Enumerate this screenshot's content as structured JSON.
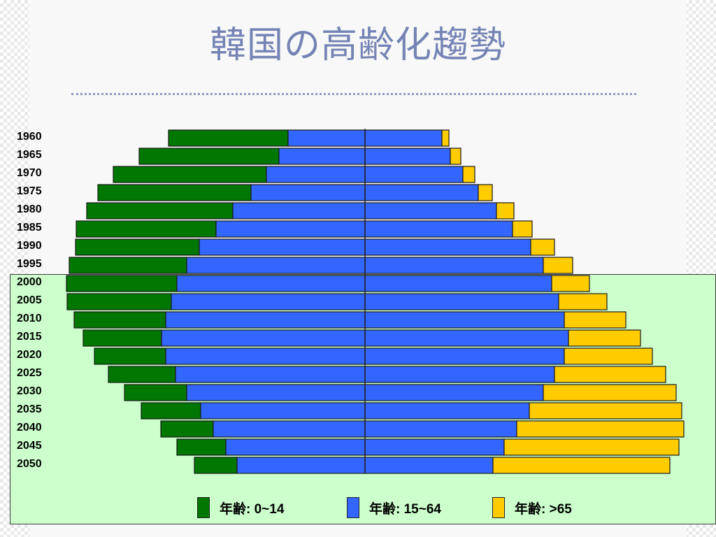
{
  "title": "韓国の高齢化趨勢",
  "colors": {
    "age_0_14": "#007700",
    "age_15_64": "#3366ff",
    "age_65_plus": "#ffcc00",
    "future_panel": "#ccffcc",
    "title": "#7584b4"
  },
  "legend": [
    {
      "label": "年齢: 0~14",
      "color": "#007700"
    },
    {
      "label": "年齢: 15~64",
      "color": "#3366ff"
    },
    {
      "label": "年齢: >65",
      "color": "#ffcc00"
    }
  ],
  "chart_data": {
    "type": "bar",
    "orientation": "horizontal",
    "categories": [
      "1960",
      "1965",
      "1970",
      "1975",
      "1980",
      "1985",
      "1990",
      "1995",
      "2000",
      "2005",
      "2010",
      "2015",
      "2020",
      "2025",
      "2030",
      "2035",
      "2040",
      "2045",
      "2050"
    ],
    "series": [
      {
        "name": "年齢: 0~14",
        "values": [
          17.1,
          20.0,
          21.9,
          21.9,
          20.9,
          20.0,
          17.7,
          16.8,
          15.8,
          14.9,
          13.1,
          11.2,
          10.2,
          9.6,
          8.9,
          8.5,
          7.5,
          7.0,
          6.1
        ]
      },
      {
        "name": "年齢: 15~64",
        "values": [
          11.0,
          12.3,
          14.1,
          16.3,
          18.9,
          21.3,
          23.7,
          25.5,
          26.9,
          27.7,
          28.5,
          29.1,
          28.5,
          27.1,
          25.5,
          23.5,
          21.7,
          19.9,
          18.3
        ]
      },
      {
        "name": "年齢: 15~64",
        "values": [
          11.0,
          12.2,
          14.0,
          16.2,
          18.8,
          21.1,
          23.7,
          25.5,
          26.7,
          27.7,
          28.5,
          29.1,
          28.5,
          27.1,
          25.5,
          23.5,
          21.7,
          19.9,
          18.3
        ]
      },
      {
        "name": "年齢: >65",
        "values": [
          1.0,
          1.5,
          1.7,
          2.0,
          2.5,
          2.8,
          3.4,
          4.2,
          5.4,
          6.9,
          8.8,
          10.3,
          12.6,
          15.9,
          19.0,
          21.8,
          23.9,
          25.0,
          25.3
        ]
      }
    ],
    "xlabel": "",
    "ylabel": "",
    "grid": false,
    "legend_position": "bottom"
  }
}
